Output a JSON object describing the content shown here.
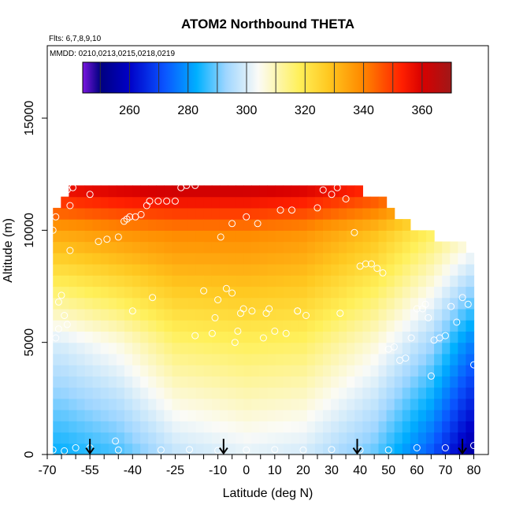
{
  "chart_data": {
    "type": "heatmap",
    "title": "ATOM2 Northbound THETA",
    "flights_label": "Flts: 6,7,8,9,10",
    "dates_label": "MMDD: 0210,0213,0215,0218,0219",
    "xlabel": "Latitude (deg N)",
    "ylabel": "Altitude (m)",
    "xlim": [
      -70,
      85
    ],
    "ylim": [
      0,
      17500
    ],
    "x_ticks": [
      -70,
      -55,
      -40,
      -25,
      -10,
      0,
      10,
      20,
      30,
      40,
      50,
      60,
      70,
      80
    ],
    "x_tick_labels": [
      "-70",
      "-55",
      "-40",
      "-25",
      "-10",
      "0",
      "10",
      "20",
      "30",
      "40",
      "50",
      "60",
      "70",
      "80"
    ],
    "x_minor_ticks": [
      -65,
      -60,
      -50,
      -45,
      -35,
      -30,
      -20,
      -15,
      -5,
      5,
      15,
      25,
      35,
      45,
      55,
      65,
      75
    ],
    "y_ticks": [
      0,
      5000,
      10000,
      15000
    ],
    "y_tick_labels": [
      "0",
      "5000",
      "10000",
      "15000"
    ],
    "colorbar": {
      "range": [
        244,
        370
      ],
      "ticks": [
        260,
        280,
        300,
        320,
        340,
        360
      ],
      "tick_labels": [
        "260",
        "280",
        "300",
        "320",
        "340",
        "360"
      ],
      "line_values": [
        250,
        260,
        270,
        280,
        290,
        300,
        310,
        320,
        330,
        340,
        350,
        360
      ],
      "colors": [
        "#7a16e0",
        "#00007f",
        "#0000c8",
        "#0a55ff",
        "#00b0ff",
        "#9fd6ff",
        "#fbfbf7",
        "#fff05a",
        "#ffc820",
        "#ff8c00",
        "#ff2000",
        "#d80000",
        "#a01818"
      ],
      "stops": [
        244,
        250,
        260,
        272,
        283,
        293,
        304,
        318,
        328,
        339,
        353,
        360,
        370
      ]
    },
    "grid": {
      "lat_range": [
        -68,
        80
      ],
      "n_lat": 53,
      "alt_step": 500,
      "top_altitude": [
        [
          -68,
          10300
        ],
        [
          -67,
          10600
        ],
        [
          -65,
          11000
        ],
        [
          -62,
          11500
        ],
        [
          -58,
          12000
        ],
        [
          -40,
          12000
        ],
        [
          -20,
          12000
        ],
        [
          -5,
          12000
        ],
        [
          5,
          12000
        ],
        [
          15,
          11900
        ],
        [
          30,
          11900
        ],
        [
          40,
          11500
        ],
        [
          44,
          11300
        ],
        [
          48,
          11000
        ],
        [
          53,
          10500
        ],
        [
          57,
          10000
        ],
        [
          60,
          9800
        ],
        [
          66,
          9500
        ],
        [
          72,
          9300
        ],
        [
          76,
          9000
        ],
        [
          80,
          8700
        ]
      ]
    },
    "theta_profile_samples": {
      "description": "potential temperature (K) estimated vs altitude at selected latitudes",
      "latitudes": [
        -65,
        -45,
        -25,
        0,
        20,
        45,
        65,
        78
      ],
      "surface_theta": [
        283,
        287,
        297,
        301,
        299,
        289,
        272,
        255
      ],
      "theta_at_5000m": [
        300,
        306,
        316,
        318,
        317,
        307,
        294,
        278
      ],
      "theta_at_10000m": [
        335,
        338,
        340,
        340,
        338,
        330,
        318,
        310
      ]
    },
    "flight_track_points": {
      "latitude": [
        -68,
        -67,
        -67,
        -66,
        -65,
        -66,
        -64,
        -63,
        -62,
        -62,
        -63,
        -61,
        -55,
        -52,
        -49,
        -45,
        -43,
        -42,
        -41,
        -39,
        -37,
        -35,
        -34,
        -31,
        -28,
        -25,
        -23,
        -21,
        -18,
        -15,
        -12,
        -11,
        -10,
        -9,
        -7,
        -5,
        -4,
        -3,
        -2,
        -1,
        0,
        2,
        4,
        6,
        8,
        10,
        12,
        14,
        16,
        18,
        21,
        25,
        27,
        30,
        32,
        35,
        38,
        40,
        42,
        44,
        46,
        48,
        50,
        52,
        54,
        56,
        58,
        60,
        62,
        63,
        64,
        65,
        66,
        68,
        70,
        72,
        74,
        76,
        78,
        80,
        -68,
        -64,
        -60,
        -55,
        -45,
        -30,
        -20,
        -10,
        0,
        10,
        20,
        30,
        40,
        50,
        60,
        70,
        80,
        -46,
        -40,
        -33,
        -18,
        -5,
        7,
        18,
        33
      ],
      "altitude": [
        10000,
        10600,
        5200,
        6800,
        7100,
        5600,
        6200,
        5800,
        9100,
        11100,
        11800,
        11900,
        11600,
        9500,
        9600,
        9700,
        10400,
        10500,
        10600,
        10600,
        10700,
        11100,
        11300,
        11300,
        11300,
        11300,
        11900,
        12000,
        12000,
        7300,
        5400,
        6100,
        6900,
        9700,
        7400,
        10300,
        5000,
        5500,
        6300,
        6500,
        10600,
        6400,
        10300,
        5200,
        6500,
        5500,
        10900,
        5400,
        10900,
        6400,
        6200,
        11000,
        11800,
        11600,
        11900,
        11400,
        9900,
        8400,
        8500,
        8500,
        8300,
        8100,
        4700,
        4800,
        4200,
        4300,
        5200,
        6500,
        6500,
        6700,
        6100,
        3500,
        5100,
        5200,
        5300,
        6600,
        5900,
        7000,
        6700,
        4000,
        200,
        160,
        300,
        300,
        200,
        200,
        220,
        180,
        200,
        220,
        200,
        220,
        200,
        200,
        300,
        300,
        400,
        600,
        6400,
        7000,
        5300,
        7200,
        6300,
        6400,
        6300
      ],
      "markers": "open white circles"
    },
    "profile_arrows_latitude": [
      -55,
      -8,
      39,
      76
    ]
  }
}
